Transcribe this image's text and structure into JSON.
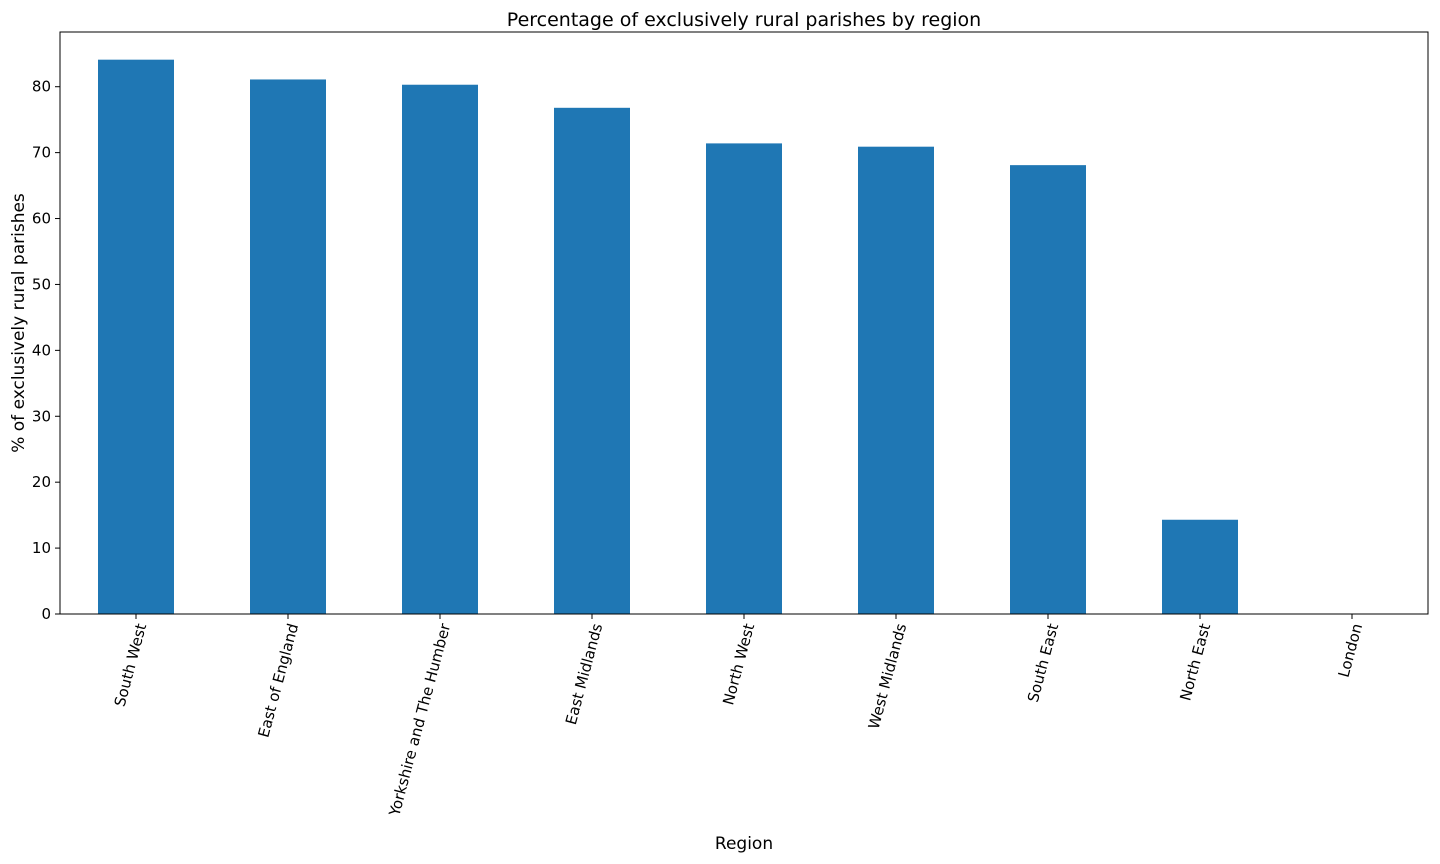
{
  "chart_data": {
    "type": "bar",
    "title": "Percentage of exclusively rural parishes by region",
    "xlabel": "Region",
    "ylabel": "% of exclusively rural parishes",
    "categories": [
      "South West",
      "East of England",
      "Yorkshire and The Humber",
      "East Midlands",
      "North West",
      "West Midlands",
      "South East",
      "North East",
      "London"
    ],
    "values": [
      84.1,
      81.1,
      80.3,
      76.8,
      71.4,
      70.9,
      68.1,
      14.3,
      0.0
    ],
    "ylim": [
      0,
      88.3
    ],
    "yticks": [
      0,
      10,
      20,
      30,
      40,
      50,
      60,
      70,
      80
    ],
    "xtick_rotation_deg": 75,
    "bar_color": "#1f77b4",
    "grid": false,
    "legend": "none"
  }
}
